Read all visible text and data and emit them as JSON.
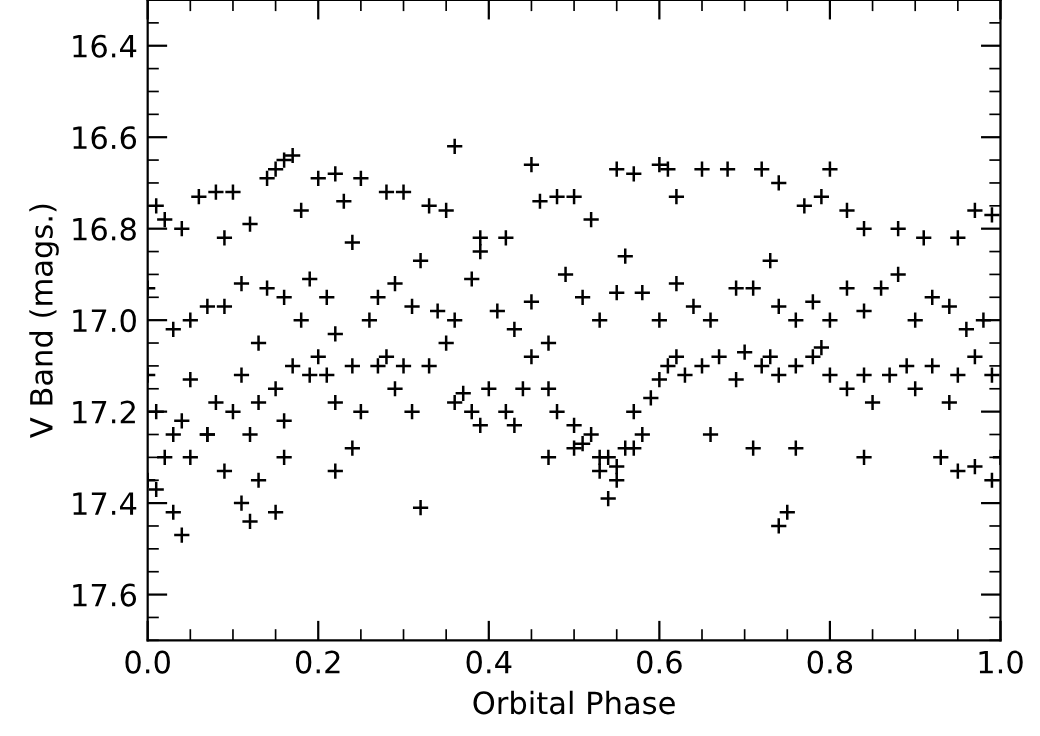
{
  "chart_data": {
    "type": "scatter",
    "xlabel": "Orbital Phase",
    "ylabel": "V Band (mags.)",
    "xlim": [
      0.0,
      1.0
    ],
    "xticks": [
      {
        "value": 0.0,
        "label": "0.0"
      },
      0.2,
      0.4,
      0.6,
      0.8,
      {
        "value": 1.0,
        "label": "1.0"
      }
    ],
    "ylim": [
      17.7,
      16.3
    ],
    "yticks": [
      16.4,
      16.6,
      16.8,
      {
        "value": 17.0,
        "label": "17.0"
      },
      17.2,
      17.4,
      17.6
    ],
    "marker": "cross",
    "grid": false,
    "legend": false,
    "series": [
      {
        "color": "#000000",
        "x": [
          0.01,
          0.02,
          0.04,
          0.06,
          0.08,
          0.09,
          0.1,
          0.12,
          0.14,
          0.15,
          0.16,
          0.17,
          0.18,
          0.2,
          0.22,
          0.23,
          0.25,
          0.28,
          0.3,
          0.33,
          0.35,
          0.36,
          0.39,
          0.42,
          0.45,
          0.46,
          0.48,
          0.5,
          0.52,
          0.55,
          0.57,
          0.6,
          0.61,
          0.62,
          0.65,
          0.68,
          0.72,
          0.74,
          0.77,
          0.79,
          0.8,
          0.82,
          0.84,
          0.88,
          0.91,
          0.95,
          0.97,
          0.99,
          0.0,
          0.03,
          0.05,
          0.07,
          0.09,
          0.11,
          0.13,
          0.14,
          0.16,
          0.18,
          0.19,
          0.21,
          0.22,
          0.24,
          0.26,
          0.27,
          0.29,
          0.31,
          0.32,
          0.34,
          0.36,
          0.38,
          0.39,
          0.41,
          0.43,
          0.45,
          0.47,
          0.49,
          0.51,
          0.53,
          0.55,
          0.56,
          0.58,
          0.6,
          0.62,
          0.64,
          0.66,
          0.69,
          0.71,
          0.73,
          0.74,
          0.76,
          0.78,
          0.8,
          0.82,
          0.84,
          0.86,
          0.88,
          0.9,
          0.92,
          0.94,
          0.96,
          0.98,
          0.0,
          0.01,
          0.03,
          0.04,
          0.05,
          0.07,
          0.08,
          0.1,
          0.11,
          0.12,
          0.13,
          0.15,
          0.16,
          0.17,
          0.19,
          0.2,
          0.21,
          0.22,
          0.24,
          0.25,
          0.27,
          0.28,
          0.29,
          0.3,
          0.31,
          0.33,
          0.35,
          0.36,
          0.37,
          0.38,
          0.39,
          0.4,
          0.42,
          0.44,
          0.45,
          0.47,
          0.48,
          0.5,
          0.51,
          0.52,
          0.53,
          0.54,
          0.55,
          0.56,
          0.57,
          0.58,
          0.59,
          0.6,
          0.61,
          0.62,
          0.63,
          0.65,
          0.67,
          0.69,
          0.7,
          0.72,
          0.73,
          0.74,
          0.76,
          0.78,
          0.79,
          0.8,
          0.82,
          0.84,
          0.85,
          0.87,
          0.89,
          0.9,
          0.92,
          0.94,
          0.95,
          0.97,
          0.99,
          0.0,
          0.01,
          0.02,
          0.03,
          0.04,
          0.05,
          0.07,
          0.09,
          0.11,
          0.12,
          0.13,
          0.15,
          0.16,
          0.22,
          0.24,
          0.32,
          0.43,
          0.47,
          0.5,
          0.53,
          0.54,
          0.55,
          0.57,
          0.66,
          0.71,
          0.74,
          0.75,
          0.76,
          0.84,
          0.93,
          0.95,
          0.97,
          0.99,
          1.0
        ],
        "values": [
          16.75,
          16.78,
          16.8,
          16.73,
          16.72,
          16.82,
          16.72,
          16.79,
          16.69,
          16.67,
          16.65,
          16.64,
          16.76,
          16.69,
          16.68,
          16.74,
          16.69,
          16.72,
          16.72,
          16.75,
          16.76,
          16.62,
          16.82,
          16.82,
          16.66,
          16.74,
          16.73,
          16.73,
          16.78,
          16.67,
          16.68,
          16.66,
          16.67,
          16.73,
          16.67,
          16.67,
          16.67,
          16.7,
          16.75,
          16.73,
          16.67,
          16.76,
          16.8,
          16.8,
          16.82,
          16.82,
          16.76,
          16.77,
          16.93,
          17.02,
          17.0,
          16.97,
          16.97,
          16.92,
          17.05,
          16.93,
          16.95,
          17.0,
          16.91,
          16.95,
          17.03,
          16.83,
          17.0,
          16.95,
          16.92,
          16.97,
          16.87,
          16.98,
          17.0,
          16.91,
          16.85,
          16.98,
          17.02,
          16.96,
          17.05,
          16.9,
          16.95,
          17.0,
          16.94,
          16.86,
          16.94,
          17.0,
          16.92,
          16.97,
          17.0,
          16.93,
          16.93,
          16.87,
          16.97,
          17.0,
          16.96,
          17.0,
          16.93,
          16.98,
          16.93,
          16.9,
          17.0,
          16.95,
          16.97,
          17.02,
          17.0,
          17.12,
          17.2,
          17.25,
          17.22,
          17.13,
          17.25,
          17.18,
          17.2,
          17.12,
          17.25,
          17.18,
          17.15,
          17.22,
          17.1,
          17.12,
          17.08,
          17.12,
          17.18,
          17.1,
          17.2,
          17.1,
          17.08,
          17.15,
          17.1,
          17.2,
          17.1,
          17.05,
          17.18,
          17.16,
          17.2,
          17.23,
          17.15,
          17.2,
          17.15,
          17.08,
          17.15,
          17.2,
          17.23,
          17.27,
          17.25,
          17.3,
          17.3,
          17.32,
          17.28,
          17.2,
          17.25,
          17.17,
          17.13,
          17.1,
          17.08,
          17.12,
          17.1,
          17.08,
          17.13,
          17.07,
          17.1,
          17.08,
          17.12,
          17.1,
          17.08,
          17.06,
          17.12,
          17.15,
          17.12,
          17.18,
          17.12,
          17.1,
          17.15,
          17.1,
          17.18,
          17.12,
          17.08,
          17.12,
          17.35,
          17.37,
          17.3,
          17.42,
          17.47,
          17.3,
          17.25,
          17.33,
          17.4,
          17.44,
          17.35,
          17.42,
          17.3,
          17.33,
          17.28,
          17.41,
          17.23,
          17.3,
          17.28,
          17.33,
          17.39,
          17.35,
          17.28,
          17.25,
          17.28,
          17.45,
          17.42,
          17.28,
          17.3,
          17.3,
          17.33,
          17.32,
          17.35,
          17.3
        ]
      }
    ]
  }
}
